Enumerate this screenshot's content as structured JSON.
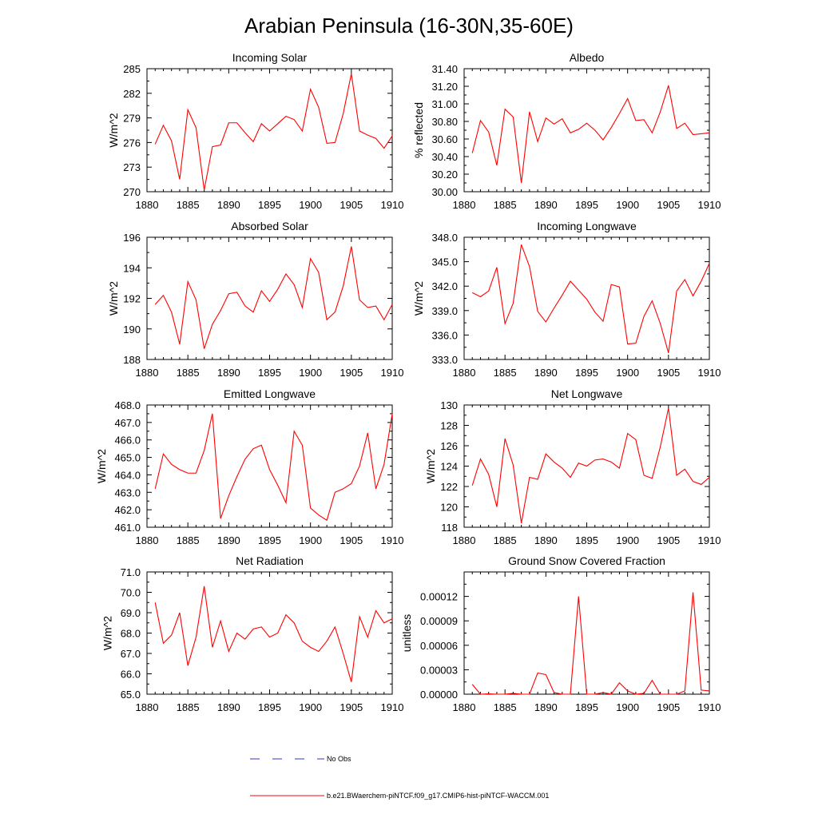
{
  "figure": {
    "title": "Arabian Peninsula (16-30N,35-60E)"
  },
  "legend": {
    "no_obs_label": "No Obs",
    "model_label": "b.e21.BWaerchem-piNTCF.f09_g17.CMIP6-hist-piNTCF-WACCM.001",
    "colors": {
      "model": "#ff0000",
      "no_obs": "#3333cc"
    }
  },
  "chart_data": [
    {
      "type": "line",
      "title": "Incoming Solar",
      "ylabel": "W/m^2",
      "xlim": [
        1880,
        1910
      ],
      "ylim": [
        270,
        285
      ],
      "xticks": [
        "1880",
        "1885",
        "1890",
        "1895",
        "1900",
        "1905",
        "1910"
      ],
      "yticks": [
        "270",
        "273",
        "276",
        "279",
        "282",
        "285"
      ],
      "series": [
        {
          "color": "#ff0000",
          "x": [
            1881,
            1882,
            1883,
            1884,
            1885,
            1886,
            1887,
            1888,
            1889,
            1890,
            1891,
            1892,
            1893,
            1894,
            1895,
            1896,
            1897,
            1898,
            1899,
            1900,
            1901,
            1902,
            1903,
            1904,
            1905,
            1906,
            1907,
            1908,
            1909,
            1910
          ],
          "values": [
            275.8,
            278.1,
            276.2,
            271.5,
            280.0,
            277.8,
            270.2,
            275.5,
            275.7,
            278.4,
            278.4,
            277.2,
            276.1,
            278.3,
            277.4,
            278.3,
            279.2,
            278.8,
            277.4,
            282.5,
            280.3,
            275.9,
            276.0,
            279.5,
            284.4,
            277.4,
            276.9,
            276.5,
            275.3,
            276.8
          ]
        }
      ]
    },
    {
      "type": "line",
      "title": "Albedo",
      "ylabel": "% reflected",
      "xlim": [
        1880,
        1910
      ],
      "ylim": [
        30.0,
        31.4
      ],
      "xticks": [
        "1880",
        "1885",
        "1890",
        "1895",
        "1900",
        "1905",
        "1910"
      ],
      "yticks": [
        "30.00",
        "30.20",
        "30.40",
        "30.60",
        "30.80",
        "31.00",
        "31.20",
        "31.40"
      ],
      "series": [
        {
          "color": "#ff0000",
          "x": [
            1881,
            1882,
            1883,
            1884,
            1885,
            1886,
            1887,
            1888,
            1889,
            1890,
            1891,
            1892,
            1893,
            1894,
            1895,
            1896,
            1897,
            1898,
            1899,
            1900,
            1901,
            1902,
            1903,
            1904,
            1905,
            1906,
            1907,
            1908,
            1909,
            1910
          ],
          "values": [
            30.44,
            30.81,
            30.68,
            30.3,
            30.94,
            30.85,
            30.1,
            30.91,
            30.57,
            30.84,
            30.77,
            30.83,
            30.67,
            30.71,
            30.78,
            30.7,
            30.59,
            30.73,
            30.89,
            31.06,
            30.81,
            30.82,
            30.67,
            30.91,
            31.21,
            30.72,
            30.78,
            30.65,
            30.66,
            30.67
          ]
        }
      ]
    },
    {
      "type": "line",
      "title": "Absorbed Solar",
      "ylabel": "W/m^2",
      "xlim": [
        1880,
        1910
      ],
      "ylim": [
        188,
        196
      ],
      "xticks": [
        "1880",
        "1885",
        "1890",
        "1895",
        "1900",
        "1905",
        "1910"
      ],
      "yticks": [
        "188",
        "190",
        "192",
        "194",
        "196"
      ],
      "series": [
        {
          "color": "#ff0000",
          "x": [
            1881,
            1882,
            1883,
            1884,
            1885,
            1886,
            1887,
            1888,
            1889,
            1890,
            1891,
            1892,
            1893,
            1894,
            1895,
            1896,
            1897,
            1898,
            1899,
            1900,
            1901,
            1902,
            1903,
            1904,
            1905,
            1906,
            1907,
            1908,
            1909,
            1910
          ],
          "values": [
            191.6,
            192.2,
            191.1,
            189.0,
            193.1,
            191.9,
            188.7,
            190.3,
            191.2,
            192.3,
            192.4,
            191.5,
            191.1,
            192.5,
            191.8,
            192.6,
            193.6,
            192.9,
            191.4,
            194.6,
            193.7,
            190.6,
            191.1,
            192.8,
            195.4,
            191.9,
            191.4,
            191.5,
            190.6,
            191.6
          ]
        }
      ]
    },
    {
      "type": "line",
      "title": "Incoming Longwave",
      "ylabel": "W/m^2",
      "xlim": [
        1880,
        1910
      ],
      "ylim": [
        333,
        348
      ],
      "xticks": [
        "1880",
        "1885",
        "1890",
        "1895",
        "1900",
        "1905",
        "1910"
      ],
      "yticks": [
        "333.0",
        "336.0",
        "339.0",
        "342.0",
        "345.0",
        "348.0"
      ],
      "series": [
        {
          "color": "#ff0000",
          "x": [
            1881,
            1882,
            1883,
            1884,
            1885,
            1886,
            1887,
            1888,
            1889,
            1890,
            1891,
            1892,
            1893,
            1894,
            1895,
            1896,
            1897,
            1898,
            1899,
            1900,
            1901,
            1902,
            1903,
            1904,
            1905,
            1906,
            1907,
            1908,
            1909,
            1910
          ],
          "values": [
            341.2,
            340.7,
            341.4,
            344.3,
            337.4,
            339.9,
            347.1,
            344.4,
            338.9,
            337.6,
            339.3,
            340.9,
            342.6,
            341.5,
            340.4,
            338.8,
            337.7,
            342.2,
            341.9,
            334.9,
            335.0,
            338.3,
            340.2,
            337.4,
            333.8,
            341.4,
            342.8,
            340.8,
            342.6,
            344.8
          ]
        }
      ]
    },
    {
      "type": "line",
      "title": "Emitted Longwave",
      "ylabel": "W/m^2",
      "xlim": [
        1880,
        1910
      ],
      "ylim": [
        461,
        468
      ],
      "xticks": [
        "1880",
        "1885",
        "1890",
        "1895",
        "1900",
        "1905",
        "1910"
      ],
      "yticks": [
        "461.0",
        "462.0",
        "463.0",
        "464.0",
        "465.0",
        "466.0",
        "467.0",
        "468.0"
      ],
      "series": [
        {
          "color": "#ff0000",
          "x": [
            1881,
            1882,
            1883,
            1884,
            1885,
            1886,
            1887,
            1888,
            1889,
            1890,
            1891,
            1892,
            1893,
            1894,
            1895,
            1896,
            1897,
            1898,
            1899,
            1900,
            1901,
            1902,
            1903,
            1904,
            1905,
            1906,
            1907,
            1908,
            1909,
            1910
          ],
          "values": [
            463.2,
            465.2,
            464.6,
            464.3,
            464.1,
            464.1,
            465.4,
            467.5,
            461.5,
            462.8,
            463.9,
            464.9,
            465.5,
            465.7,
            464.3,
            463.4,
            462.4,
            466.5,
            465.7,
            462.1,
            461.7,
            461.4,
            463.0,
            463.2,
            463.5,
            464.5,
            466.4,
            463.2,
            464.6,
            467.5
          ]
        }
      ]
    },
    {
      "type": "line",
      "title": "Net Longwave",
      "ylabel": "W/m^2",
      "xlim": [
        1880,
        1910
      ],
      "ylim": [
        118,
        130
      ],
      "xticks": [
        "1880",
        "1885",
        "1890",
        "1895",
        "1900",
        "1905",
        "1910"
      ],
      "yticks": [
        "118",
        "120",
        "122",
        "124",
        "126",
        "128",
        "130"
      ],
      "series": [
        {
          "color": "#ff0000",
          "x": [
            1881,
            1882,
            1883,
            1884,
            1885,
            1886,
            1887,
            1888,
            1889,
            1890,
            1891,
            1892,
            1893,
            1894,
            1895,
            1896,
            1897,
            1898,
            1899,
            1900,
            1901,
            1902,
            1903,
            1904,
            1905,
            1906,
            1907,
            1908,
            1909,
            1910
          ],
          "values": [
            122.1,
            124.7,
            123.2,
            120.0,
            126.7,
            124.1,
            118.4,
            122.9,
            122.7,
            125.2,
            124.4,
            123.8,
            122.9,
            124.3,
            124.0,
            124.6,
            124.7,
            124.4,
            123.8,
            127.2,
            126.6,
            123.1,
            122.8,
            125.9,
            129.7,
            123.1,
            123.7,
            122.5,
            122.2,
            122.9
          ]
        }
      ]
    },
    {
      "type": "line",
      "title": "Net Radiation",
      "ylabel": "W/m^2",
      "xlim": [
        1880,
        1910
      ],
      "ylim": [
        65,
        71
      ],
      "xticks": [
        "1880",
        "1885",
        "1890",
        "1895",
        "1900",
        "1905",
        "1910"
      ],
      "yticks": [
        "65.0",
        "66.0",
        "67.0",
        "68.0",
        "69.0",
        "70.0",
        "71.0"
      ],
      "series": [
        {
          "color": "#ff0000",
          "x": [
            1881,
            1882,
            1883,
            1884,
            1885,
            1886,
            1887,
            1888,
            1889,
            1890,
            1891,
            1892,
            1893,
            1894,
            1895,
            1896,
            1897,
            1898,
            1899,
            1900,
            1901,
            1902,
            1903,
            1904,
            1905,
            1906,
            1907,
            1908,
            1909,
            1910
          ],
          "values": [
            69.5,
            67.5,
            67.9,
            69.0,
            66.4,
            67.8,
            70.3,
            67.3,
            68.6,
            67.1,
            68.0,
            67.7,
            68.2,
            68.3,
            67.8,
            68.0,
            68.9,
            68.5,
            67.6,
            67.3,
            67.1,
            67.6,
            68.3,
            67.0,
            65.6,
            68.8,
            67.8,
            69.1,
            68.5,
            68.7
          ]
        }
      ]
    },
    {
      "type": "line",
      "title": "Ground Snow Covered Fraction",
      "ylabel": "unitless",
      "xlim": [
        1880,
        1910
      ],
      "ylim": [
        0,
        0.00015
      ],
      "xticks": [
        "1880",
        "1885",
        "1890",
        "1895",
        "1900",
        "1905",
        "1910"
      ],
      "yticks": [
        "0.00000",
        "0.00003",
        "0.00006",
        "0.00009",
        "0.00012"
      ],
      "series": [
        {
          "color": "#ff0000",
          "x": [
            1881,
            1882,
            1883,
            1884,
            1885,
            1886,
            1887,
            1888,
            1889,
            1890,
            1891,
            1892,
            1893,
            1894,
            1895,
            1896,
            1897,
            1898,
            1899,
            1900,
            1901,
            1902,
            1903,
            1904,
            1905,
            1906,
            1907,
            1908,
            1909,
            1910
          ],
          "values": [
            1.2e-05,
            0.0,
            5e-07,
            0.0,
            0.0,
            1e-06,
            0.0,
            0.0,
            2.6e-05,
            2.4e-05,
            2e-06,
            0.0,
            0.0,
            0.00012,
            0.0,
            0.0,
            2e-06,
            0.0,
            1.4e-05,
            4e-06,
            0.0,
            1e-06,
            1.7e-05,
            0.0,
            0.0,
            0.0,
            4e-06,
            0.000125,
            5e-06,
            4e-06
          ]
        }
      ]
    }
  ]
}
